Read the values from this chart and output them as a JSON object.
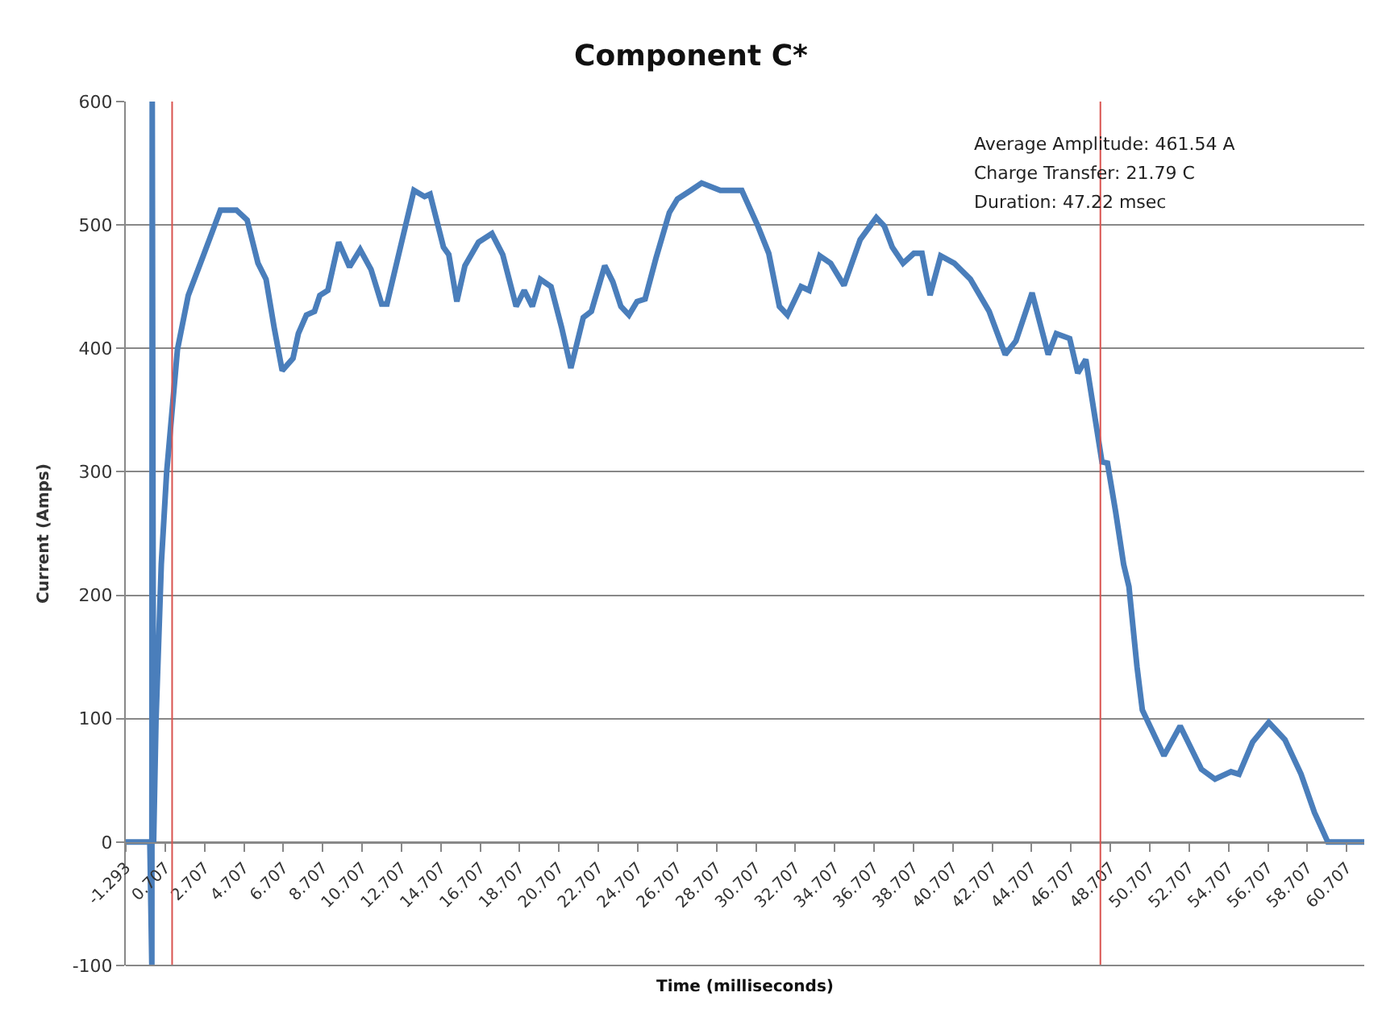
{
  "chart_data": {
    "type": "line",
    "title": "Component C*",
    "xlabel": "Time (milliseconds)",
    "ylabel": "Current (Amps)",
    "annotations": [
      "Average Amplitude: 461.54 A",
      "Charge Transfer: 21.79 C",
      "Duration: 47.22 msec"
    ],
    "x": [
      -1.293,
      -0.07,
      0.03,
      0.05,
      0.12,
      0.24,
      0.51,
      0.78,
      1.33,
      1.88,
      2.69,
      3.51,
      4.33,
      4.87,
      5.42,
      5.83,
      6.24,
      6.65,
      7.2,
      7.47,
      7.88,
      8.29,
      8.56,
      8.97,
      9.52,
      10.07,
      10.61,
      11.16,
      11.7,
      11.97,
      12.52,
      13.34,
      13.88,
      14.16,
      14.84,
      15.11,
      15.52,
      15.93,
      16.62,
      17.3,
      17.85,
      18.53,
      18.94,
      19.35,
      19.76,
      20.3,
      20.84,
      21.31,
      21.94,
      22.35,
      23.03,
      23.44,
      23.85,
      24.26,
      24.67,
      25.08,
      25.63,
      26.31,
      26.72,
      27.4,
      27.95,
      28.9,
      29.99,
      30.81,
      31.36,
      31.9,
      32.31,
      33.0,
      33.41,
      33.95,
      34.5,
      35.18,
      36.0,
      36.82,
      37.23,
      37.63,
      38.18,
      38.73,
      39.14,
      39.55,
      40.09,
      40.78,
      41.6,
      42.55,
      43.37,
      43.91,
      44.73,
      45.55,
      45.96,
      46.64,
      47.05,
      47.46,
      48.28,
      48.56,
      48.97,
      49.38,
      49.65,
      50.06,
      50.33,
      51.43,
      52.25,
      53.33,
      54.02,
      54.83,
      55.24,
      55.93,
      56.75,
      57.57,
      58.39,
      59.07,
      59.75,
      61.6
    ],
    "series": [
      {
        "color": "#4a7ebb",
        "values": [
          0,
          0,
          -100,
          600,
          0,
          98,
          225,
          299,
          399,
          443,
          477,
          512,
          512,
          504,
          469,
          456,
          417,
          382,
          392,
          412,
          427,
          430,
          443,
          447,
          486,
          466,
          480,
          464,
          436,
          436,
          473,
          528,
          523,
          525,
          482,
          476,
          438,
          467,
          486,
          493,
          476,
          434,
          447,
          434,
          456,
          450,
          417,
          384,
          425,
          430,
          467,
          454,
          434,
          427,
          438,
          440,
          473,
          510,
          521,
          528,
          534,
          528,
          528,
          499,
          477,
          434,
          427,
          450,
          447,
          475,
          469,
          451,
          488,
          506,
          499,
          482,
          469,
          477,
          477,
          443,
          475,
          469,
          456,
          430,
          395,
          406,
          445,
          395,
          412,
          408,
          380,
          391,
          308,
          307,
          268,
          225,
          207,
          142,
          107,
          70,
          94,
          59,
          51,
          57,
          55,
          81,
          97,
          83,
          55,
          24,
          0,
          0
        ]
      }
    ],
    "ref_lines": [
      {
        "axis": "x",
        "value": 1.06,
        "color": "#d9534f"
      },
      {
        "axis": "x",
        "value": 48.2,
        "color": "#d9534f"
      }
    ],
    "xlim": [
      -1.293,
      61.6
    ],
    "xticks": [
      -1.293,
      0.707,
      2.707,
      4.707,
      6.707,
      8.707,
      10.707,
      12.707,
      14.707,
      16.707,
      18.707,
      20.707,
      22.707,
      24.707,
      26.707,
      28.707,
      30.707,
      32.707,
      34.707,
      36.707,
      38.707,
      40.707,
      42.707,
      44.707,
      46.707,
      48.707,
      50.707,
      52.707,
      54.707,
      56.707,
      58.707,
      60.707
    ],
    "ylim": [
      -100,
      600
    ],
    "yticks": [
      -100,
      0,
      100,
      200,
      300,
      400,
      500,
      600
    ],
    "grid": "y",
    "marker": "none",
    "line_style": "solid"
  }
}
